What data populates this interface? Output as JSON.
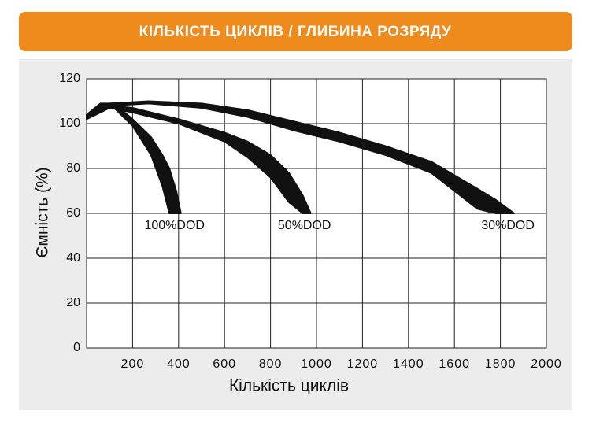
{
  "chart_data": {
    "type": "band",
    "title": "КІЛЬКІСТЬ ЦИКЛІВ / ГЛИБИНА РОЗРЯДУ",
    "xlabel": "Кількість циклів",
    "ylabel": "Ємність (%)",
    "xlim": [
      0,
      2000
    ],
    "xticks": [
      200,
      400,
      600,
      800,
      1000,
      1200,
      1400,
      1600,
      1800,
      2000
    ],
    "ylim": [
      0,
      120
    ],
    "yticks": [
      0,
      20,
      40,
      60,
      80,
      100,
      120
    ],
    "grid": true,
    "series": [
      {
        "name": "100%DOD",
        "color": "#111111",
        "x": [
          0,
          60,
          120,
          200,
          280,
          330,
          360,
          390,
          410
        ],
        "upper": [
          104,
          109,
          109,
          102,
          94,
          86,
          80,
          70,
          60
        ],
        "lower": [
          103,
          107,
          107,
          99,
          86,
          72,
          60,
          60,
          60
        ]
      },
      {
        "name": "50%DOD",
        "color": "#111111",
        "x": [
          0,
          100,
          200,
          400,
          600,
          700,
          800,
          880,
          940,
          975
        ],
        "upper": [
          102,
          108,
          107,
          102,
          96,
          92,
          86,
          78,
          68,
          60
        ],
        "lower": [
          102,
          107,
          105,
          100,
          92,
          85,
          76,
          65,
          60,
          60
        ]
      },
      {
        "name": "30%DOD",
        "color": "#111111",
        "x": [
          0,
          100,
          270,
          500,
          700,
          900,
          1100,
          1300,
          1500,
          1700,
          1780,
          1860
        ],
        "upper": [
          104,
          109,
          110,
          109,
          106,
          101,
          96,
          90,
          83,
          71,
          66,
          60
        ],
        "lower": [
          102,
          108,
          109,
          107,
          103,
          97,
          92,
          86,
          78,
          62,
          60,
          60
        ]
      }
    ]
  }
}
